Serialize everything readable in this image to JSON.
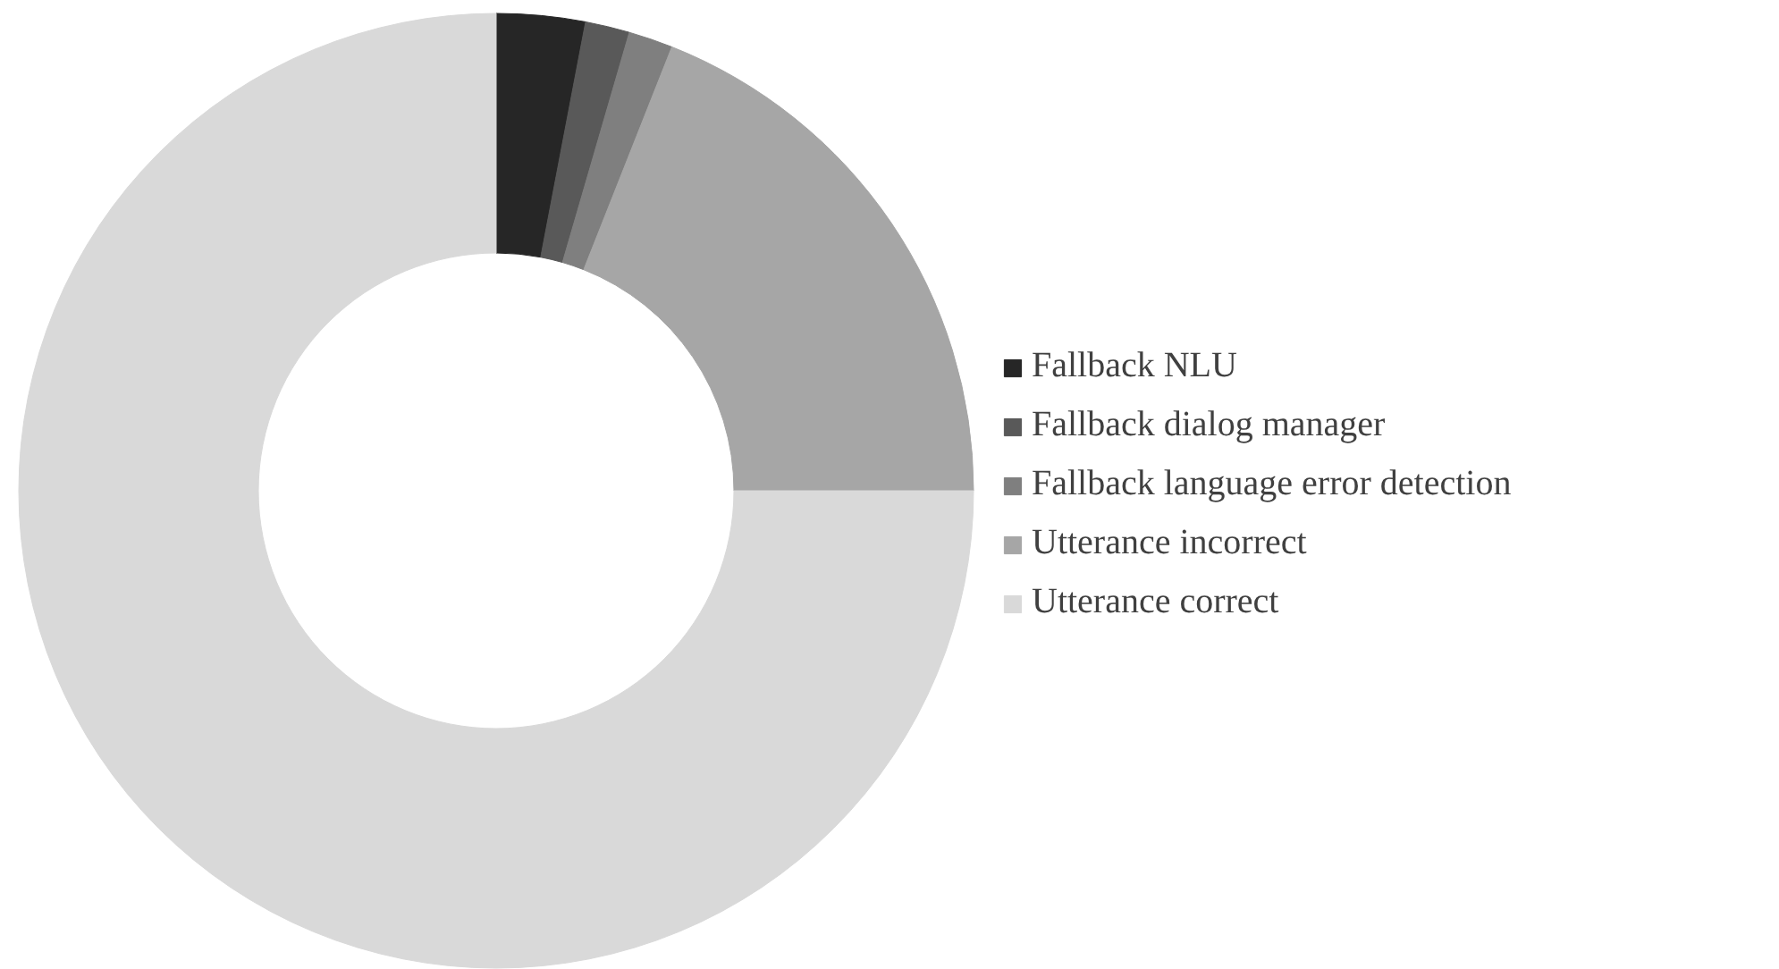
{
  "chart_data": {
    "type": "donut",
    "categories": [
      "Fallback NLU",
      "Fallback dialog manager",
      "Fallback language error detection",
      "Utterance incorrect",
      "Utterance correct"
    ],
    "values": [
      3,
      1.5,
      1.5,
      19,
      75
    ],
    "colors": [
      "#262626",
      "#595959",
      "#7f7f7f",
      "#a6a6a6",
      "#d9d9d9"
    ],
    "legend": "right"
  }
}
